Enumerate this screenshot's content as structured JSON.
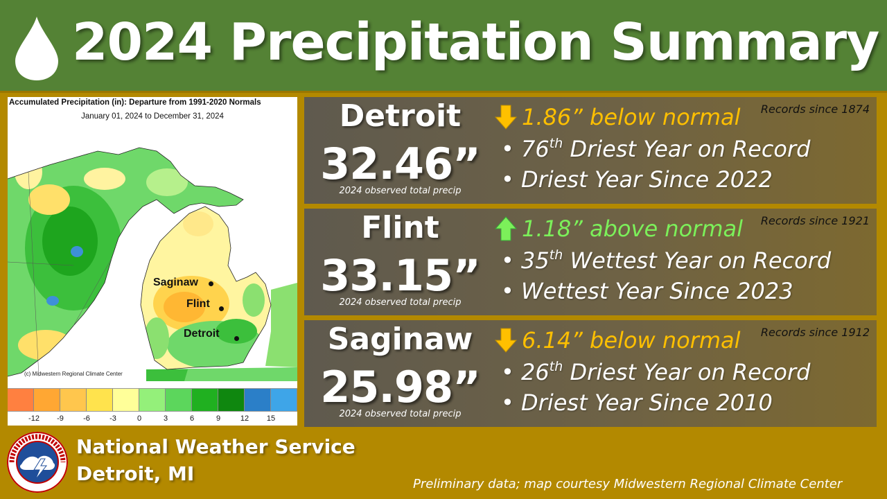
{
  "header": {
    "title": "2024 Precipitation Summary",
    "icon": "water-drop-icon",
    "background": "#548235"
  },
  "map": {
    "title": "Accumulated Precipitation (in): Departure from 1991-2020 Normals",
    "subtitle": "January 01, 2024 to December 31, 2024",
    "credit": "(c) Midwestern Regional Climate Center",
    "cities": [
      {
        "name": "Saginaw"
      },
      {
        "name": "Flint"
      },
      {
        "name": "Detroit"
      }
    ],
    "legend": {
      "ticks": [
        "-12",
        "-9",
        "-6",
        "-3",
        "0",
        "3",
        "6",
        "9",
        "12",
        "15"
      ],
      "colors": [
        "#ff8040",
        "#ffa733",
        "#ffc64d",
        "#ffe34d",
        "#ffff99",
        "#94f07a",
        "#5cd65c",
        "#20b020",
        "#0f870f",
        "#2b7fc8",
        "#3ea5e8"
      ]
    }
  },
  "cities": [
    {
      "name": "Detroit",
      "total": "32.46”",
      "total_caption": "2024 observed total precip",
      "records": "Records since 1874",
      "direction": "down",
      "departure": "1.86” below normal",
      "departure_color": "#ffc000",
      "rank_num": "76",
      "rank_suffix": "th",
      "rank_text": " Driest Year on Record",
      "since": "Driest Year Since 2022"
    },
    {
      "name": "Flint",
      "total": "33.15”",
      "total_caption": "2024 observed total precip",
      "records": "Records since 1921",
      "direction": "up",
      "departure": "1.18” above normal",
      "departure_color": "#7cf05a",
      "rank_num": "35",
      "rank_suffix": "th",
      "rank_text": " Wettest Year on Record",
      "since": "Wettest Year Since 2023"
    },
    {
      "name": "Saginaw",
      "total": "25.98”",
      "total_caption": "2024 observed total precip",
      "records": "Records since 1912",
      "direction": "down",
      "departure": "6.14” below normal",
      "departure_color": "#ffc000",
      "rank_num": "26",
      "rank_suffix": "th",
      "rank_text": " Driest Year on Record",
      "since": "Driest Year Since 2010"
    }
  ],
  "footer": {
    "org": "National Weather Service",
    "office": "Detroit, MI",
    "note": "Preliminary data; map courtesy Midwestern Regional Climate Center",
    "logo": "nws-logo-icon"
  }
}
